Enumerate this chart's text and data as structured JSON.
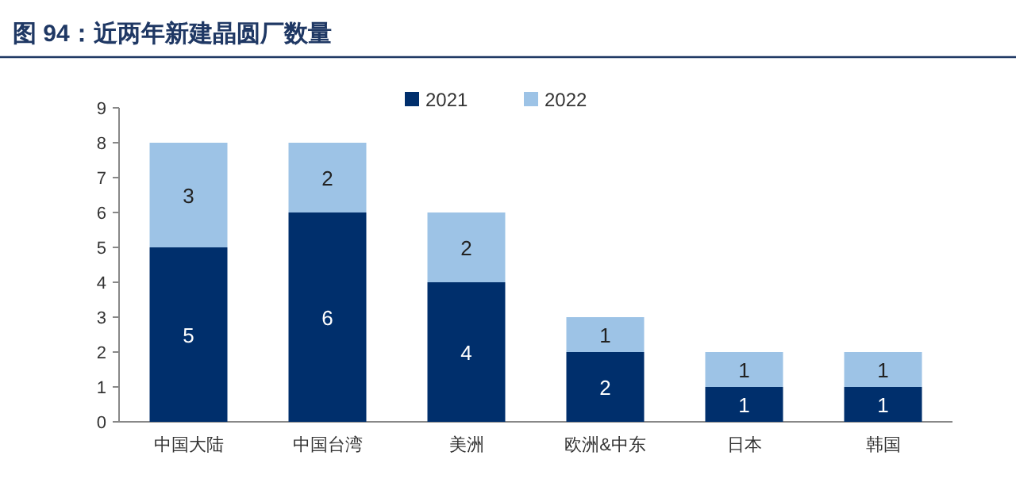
{
  "chart_data": {
    "type": "bar",
    "title": "图 94：近两年新建晶圆厂数量",
    "categories": [
      "中国大陆",
      "中国台湾",
      "美洲",
      "欧洲&中东",
      "日本",
      "韩国"
    ],
    "series": [
      {
        "name": "2021",
        "color": "#002f6c",
        "values": [
          5,
          6,
          4,
          2,
          1,
          1
        ]
      },
      {
        "name": "2022",
        "color": "#9dc3e6",
        "values": [
          3,
          2,
          2,
          1,
          1,
          1
        ]
      }
    ],
    "stacked": true,
    "ylim": [
      0,
      9
    ],
    "yticks": [
      0,
      1,
      2,
      3,
      4,
      5,
      6,
      7,
      8,
      9
    ],
    "data_labels": true,
    "legend": "top"
  }
}
